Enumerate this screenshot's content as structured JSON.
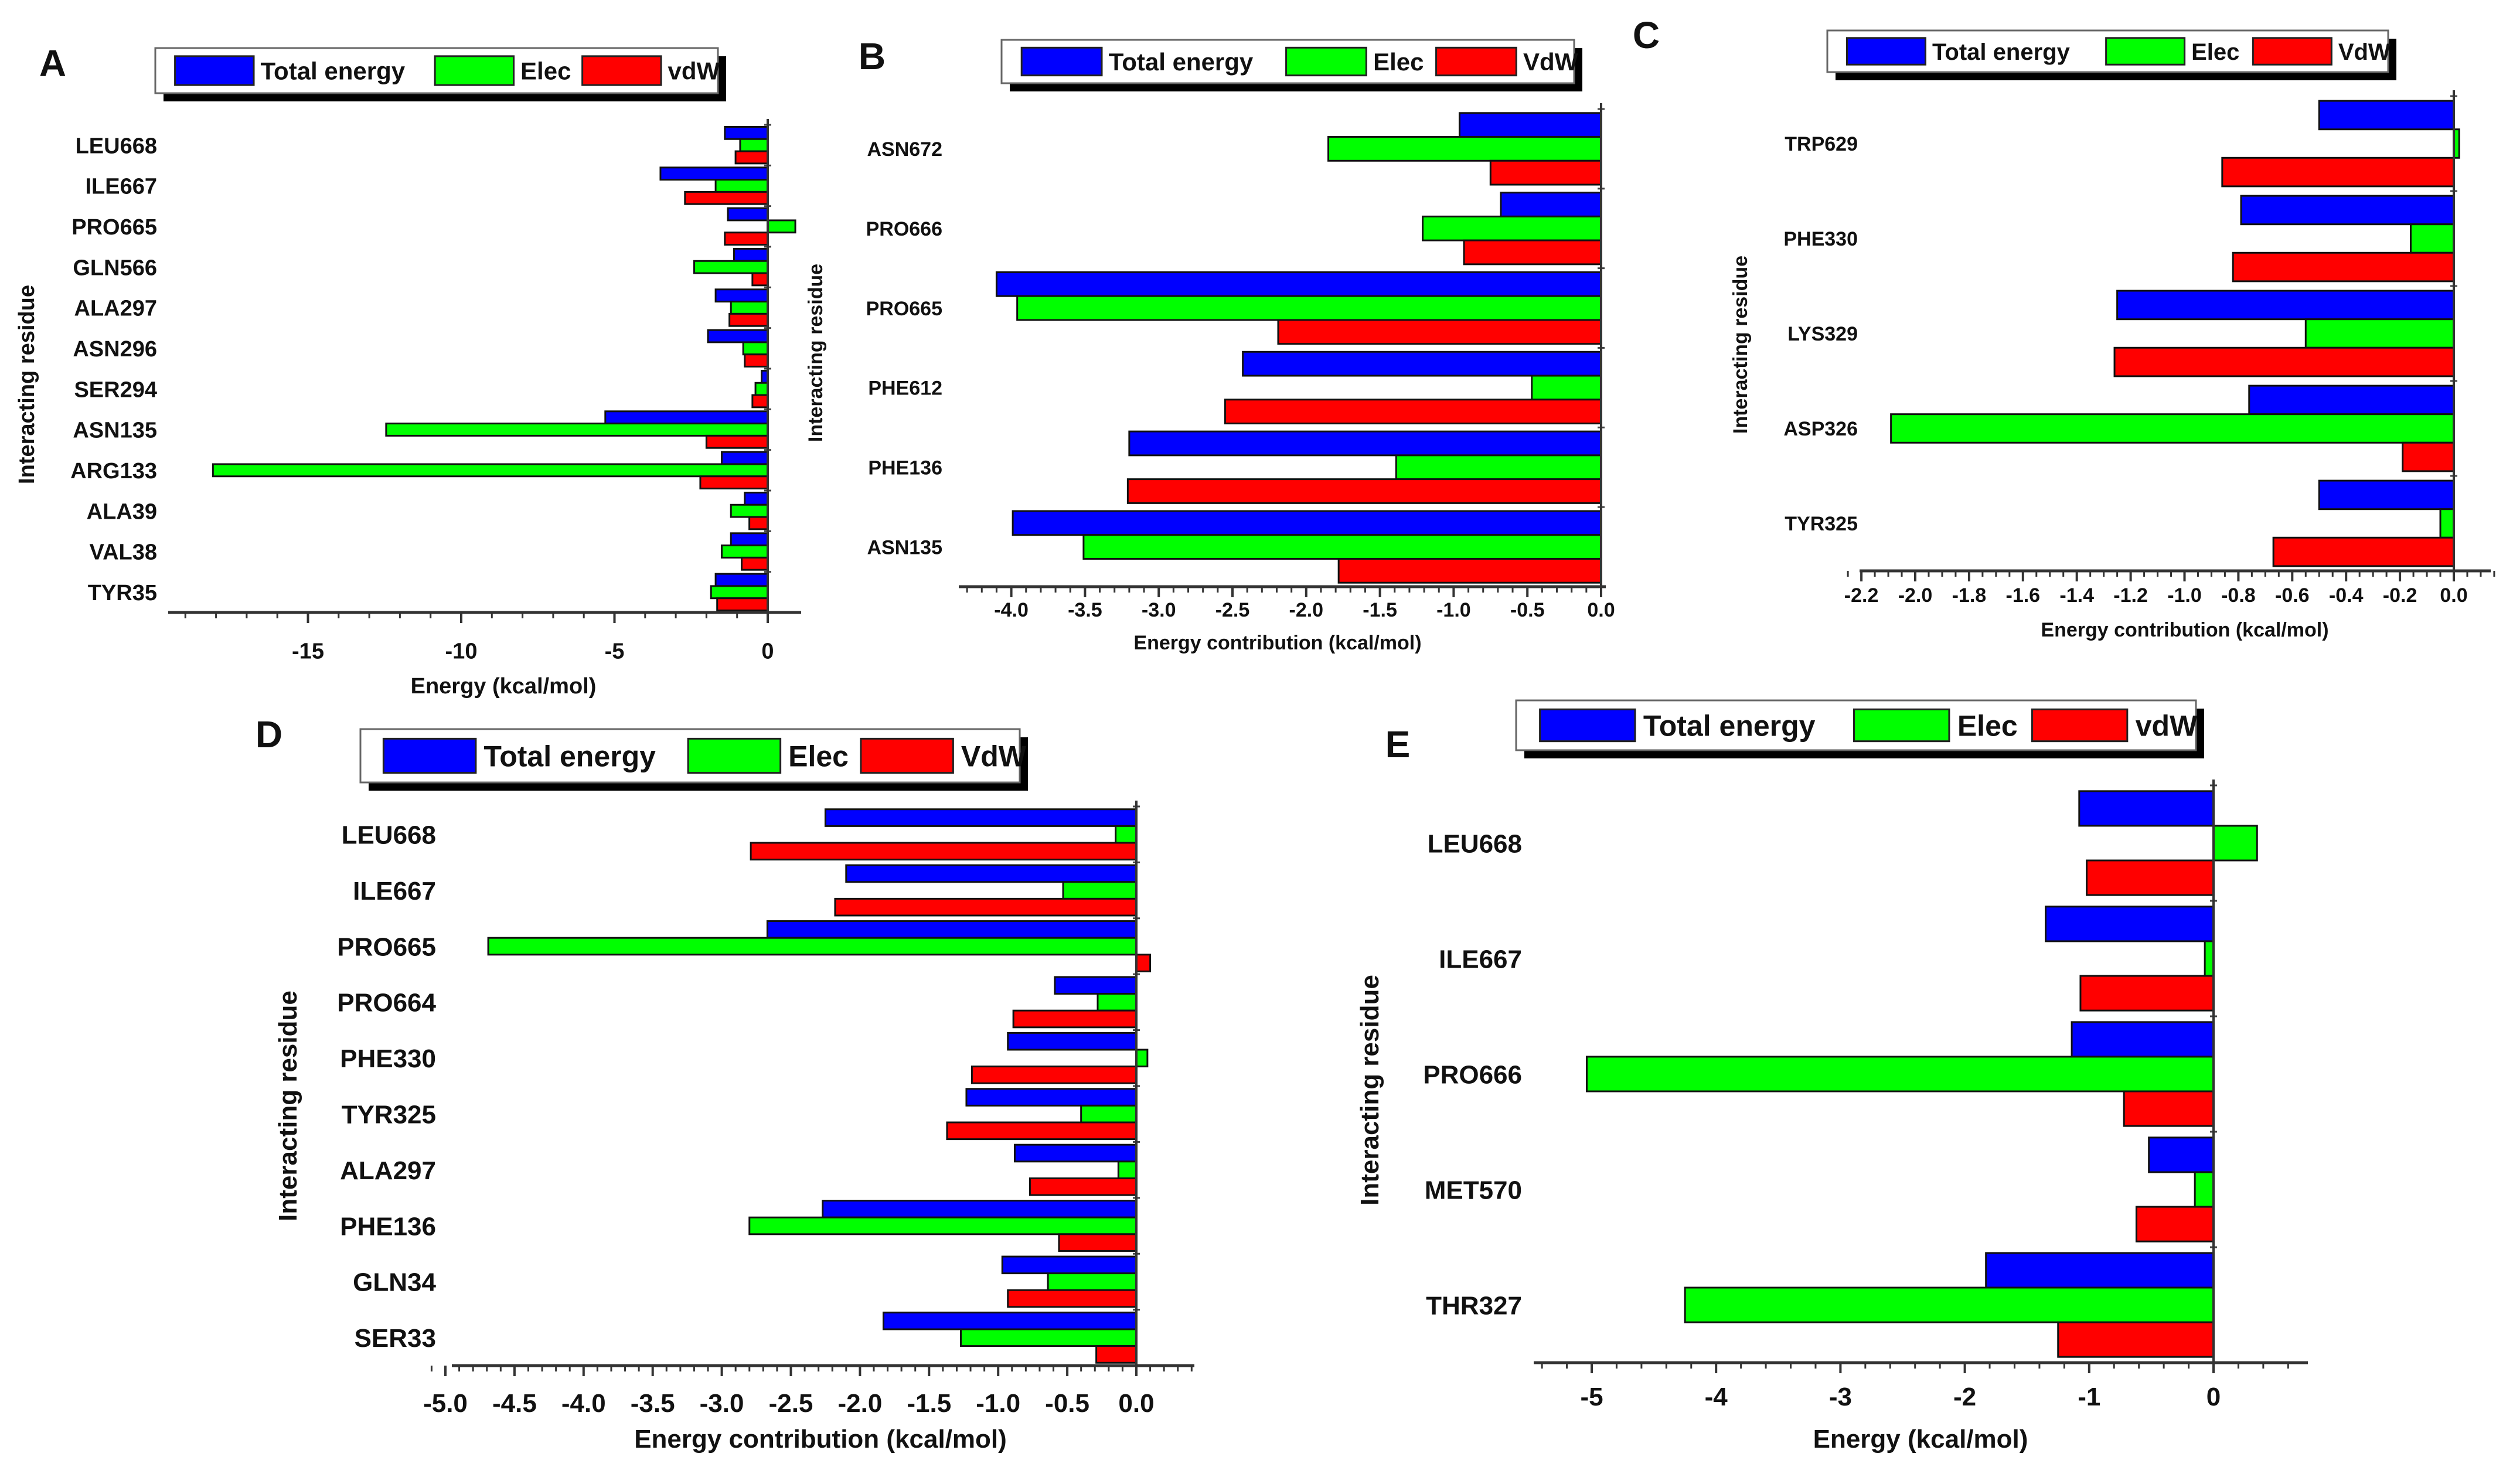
{
  "colors": {
    "total": "#0000ff",
    "elec": "#00ff00",
    "vdw": "#ff0000"
  },
  "chart_data": [
    {
      "panel": "A",
      "type": "bar",
      "orientation": "horizontal",
      "legend": [
        "Total energy",
        "Elec",
        "vdW"
      ],
      "xlabel": "Energy (kcal/mol)",
      "ylabel": "Interacting residue",
      "xlim": [
        -19.5,
        0.9
      ],
      "xticks": [
        -15,
        -10,
        -5,
        0
      ],
      "xtick_labels": [
        "-15",
        "-10",
        "-5",
        "0"
      ],
      "minor_step": 1,
      "categories": [
        "LEU668",
        "ILE667",
        "PRO665",
        "GLN566",
        "ALA297",
        "ASN296",
        "SER294",
        "ASN135",
        "ARG133",
        "ALA39",
        "VAL38",
        "TYR35"
      ],
      "series": [
        {
          "name": "Total energy",
          "values": [
            -1.4,
            -3.5,
            -1.3,
            -1.1,
            -1.7,
            -1.95,
            -0.2,
            -5.3,
            -1.5,
            -0.75,
            -1.2,
            -1.7
          ]
        },
        {
          "name": "Elec",
          "values": [
            -0.9,
            -1.7,
            0.9,
            -2.4,
            -1.2,
            -0.8,
            -0.4,
            -12.45,
            -18.1,
            -1.2,
            -1.5,
            -1.85
          ]
        },
        {
          "name": "vdW",
          "values": [
            -1.05,
            -2.7,
            -1.4,
            -0.5,
            -1.25,
            -0.75,
            -0.5,
            -2.0,
            -2.2,
            -0.6,
            -0.85,
            -1.65
          ]
        }
      ]
    },
    {
      "panel": "B",
      "type": "bar",
      "orientation": "horizontal",
      "legend": [
        "Total energy",
        "Elec",
        "VdW"
      ],
      "xlabel": "Energy contribution (kcal/mol)",
      "ylabel": "Interacting residue",
      "xlim": [
        -4.35,
        0
      ],
      "xticks": [
        -4.0,
        -3.5,
        -3.0,
        -2.5,
        -2.0,
        -1.5,
        -1.0,
        -0.5,
        0.0
      ],
      "xtick_labels": [
        "-4.0",
        "-3.5",
        "-3.0",
        "-2.5",
        "-2.0",
        "-1.5",
        "-1.0",
        "-0.5",
        "0.0"
      ],
      "minor_step": 0.1,
      "categories": [
        "ASN672",
        "PRO666",
        "PRO665",
        "PHE612",
        "PHE136",
        "ASN135"
      ],
      "series": [
        {
          "name": "Total energy",
          "values": [
            -0.96,
            -0.68,
            -4.1,
            -2.43,
            -3.2,
            -3.99
          ]
        },
        {
          "name": "Elec",
          "values": [
            -1.85,
            -1.21,
            -3.96,
            -0.47,
            -1.39,
            -3.51
          ]
        },
        {
          "name": "VdW",
          "values": [
            -0.75,
            -0.93,
            -2.19,
            -2.55,
            -3.21,
            -1.78
          ]
        }
      ]
    },
    {
      "panel": "C",
      "type": "bar",
      "orientation": "horizontal",
      "legend": [
        "Total energy",
        "Elec",
        "VdW"
      ],
      "xlabel": "Energy contribution (kcal/mol)",
      "ylabel": "Interacting residue",
      "xlim": [
        -2.25,
        0.15
      ],
      "xticks": [
        -2.2,
        -2.0,
        -1.8,
        -1.6,
        -1.4,
        -1.2,
        -1.0,
        -0.8,
        -0.6,
        -0.4,
        -0.2,
        0.0
      ],
      "xtick_labels": [
        "-2.2",
        "-2.0",
        "-1.8",
        "-1.6",
        "-1.4",
        "-1.2",
        "-1.0",
        "-0.8",
        "-0.6",
        "-0.4",
        "-0.2",
        "0.0"
      ],
      "minor_step": 0.05,
      "categories": [
        "TRP629",
        "PHE330",
        "LYS329",
        "ASP326",
        "TYR325"
      ],
      "series": [
        {
          "name": "Total energy",
          "values": [
            -0.5,
            -0.79,
            -1.25,
            -0.76,
            -0.5
          ]
        },
        {
          "name": "Elec",
          "values": [
            0.02,
            -0.16,
            -0.55,
            -2.09,
            -0.05
          ]
        },
        {
          "name": "VdW",
          "values": [
            -0.86,
            -0.82,
            -1.26,
            -0.19,
            -0.67
          ]
        }
      ]
    },
    {
      "panel": "D",
      "type": "bar",
      "orientation": "horizontal",
      "legend": [
        "Total energy",
        "Elec",
        "VdW"
      ],
      "xlabel": "Energy contribution (kcal/mol)",
      "ylabel": "Interacting residue",
      "xlim": [
        -5.15,
        0.42
      ],
      "xticks": [
        -5.0,
        -4.5,
        -4.0,
        -3.5,
        -3.0,
        -2.5,
        -2.0,
        -1.5,
        -1.0,
        -0.5,
        0.0
      ],
      "xtick_labels": [
        "-5.0",
        "-4.5",
        "-4.0",
        "-3.5",
        "-3.0",
        "-2.5",
        "-2.0",
        "-1.5",
        "-1.0",
        "-0.5",
        "0.0"
      ],
      "minor_step": 0.1,
      "categories": [
        "LEU668",
        "ILE667",
        "PRO665",
        "PRO664",
        "PHE330",
        "TYR325",
        "ALA297",
        "PHE136",
        "GLN34",
        "SER33"
      ],
      "series": [
        {
          "name": "Total energy",
          "values": [
            -2.25,
            -2.1,
            -2.67,
            -0.59,
            -0.93,
            -1.23,
            -0.88,
            -2.27,
            -0.97,
            -1.83
          ]
        },
        {
          "name": "Elec",
          "values": [
            -0.15,
            -0.53,
            -4.69,
            -0.28,
            0.08,
            -0.4,
            -0.13,
            -2.8,
            -0.64,
            -1.27
          ]
        },
        {
          "name": "VdW",
          "values": [
            -2.79,
            -2.18,
            0.1,
            -0.89,
            -1.19,
            -1.37,
            -0.77,
            -0.56,
            -0.93,
            -0.29
          ]
        }
      ]
    },
    {
      "panel": "E",
      "type": "bar",
      "orientation": "horizontal",
      "legend": [
        "Total energy",
        "Elec",
        "vdW"
      ],
      "xlabel": "Energy (kcal/mol)",
      "ylabel": "Interacting residue",
      "xlim": [
        -5.5,
        0.75
      ],
      "xticks": [
        -5,
        -4,
        -3,
        -2,
        -1,
        0
      ],
      "xtick_labels": [
        "-5",
        "-4",
        "-3",
        "-2",
        "-1",
        "0"
      ],
      "minor_step": 0.2,
      "categories": [
        "LEU668",
        "ILE667",
        "PRO666",
        "MET570",
        "THR327"
      ],
      "series": [
        {
          "name": "Total energy",
          "values": [
            -1.08,
            -1.35,
            -1.14,
            -0.52,
            -1.83
          ]
        },
        {
          "name": "Elec",
          "values": [
            0.35,
            -0.07,
            -5.04,
            -0.15,
            -4.25
          ]
        },
        {
          "name": "vdW",
          "values": [
            -1.02,
            -1.07,
            -0.72,
            -0.62,
            -1.25
          ]
        }
      ]
    }
  ]
}
